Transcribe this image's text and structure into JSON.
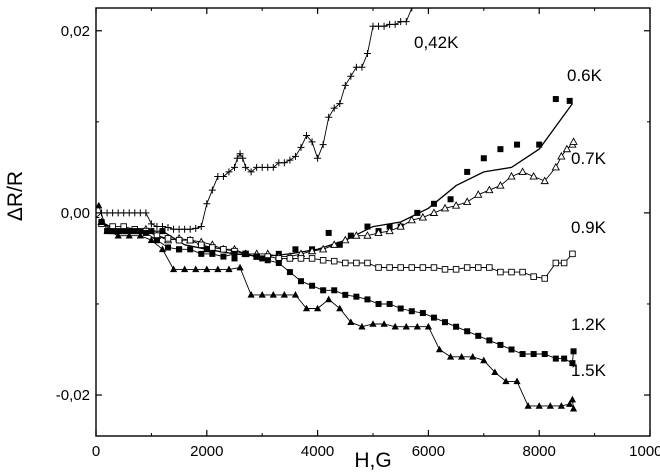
{
  "chart_data": {
    "type": "scatter",
    "xlabel": "H,G",
    "ylabel": "ΔR/R",
    "xlim": [
      0,
      10000
    ],
    "ylim": [
      -0.0245,
      0.0225
    ],
    "xticks": [
      0,
      2000,
      4000,
      6000,
      8000,
      10000
    ],
    "xtick_labels": [
      "0",
      "2000",
      "4000",
      "6000",
      "8000",
      "10000"
    ],
    "yticks": [
      0.02,
      0.0,
      -0.02
    ],
    "ytick_labels": [
      "0,02",
      "0,00",
      "-0,02"
    ],
    "grid": false,
    "series": [
      {
        "name": "0,42K",
        "marker": "plus",
        "line": true,
        "points": [
          [
            0,
            -0.0005
          ],
          [
            100,
            0.0
          ],
          [
            200,
            0.0
          ],
          [
            300,
            0.0
          ],
          [
            400,
            0.0
          ],
          [
            500,
            0.0
          ],
          [
            600,
            0.0
          ],
          [
            700,
            0.0
          ],
          [
            800,
            0.0
          ],
          [
            900,
            0.0
          ],
          [
            1000,
            -0.0012
          ],
          [
            1100,
            -0.0015
          ],
          [
            1200,
            -0.0015
          ],
          [
            1300,
            -0.0016
          ],
          [
            1400,
            -0.0018
          ],
          [
            1500,
            -0.0018
          ],
          [
            1600,
            -0.0018
          ],
          [
            1700,
            -0.0018
          ],
          [
            1800,
            -0.0017
          ],
          [
            1900,
            -0.0015
          ],
          [
            2000,
            0.001
          ],
          [
            2100,
            0.0025
          ],
          [
            2200,
            0.004
          ],
          [
            2300,
            0.004
          ],
          [
            2400,
            0.0045
          ],
          [
            2500,
            0.005
          ],
          [
            2550,
            0.006
          ],
          [
            2600,
            0.0065
          ],
          [
            2650,
            0.006
          ],
          [
            2700,
            0.005
          ],
          [
            2800,
            0.0045
          ],
          [
            2900,
            0.005
          ],
          [
            3000,
            0.005
          ],
          [
            3100,
            0.005
          ],
          [
            3200,
            0.005
          ],
          [
            3300,
            0.0055
          ],
          [
            3400,
            0.0055
          ],
          [
            3500,
            0.0058
          ],
          [
            3600,
            0.0062
          ],
          [
            3700,
            0.0072
          ],
          [
            3800,
            0.0085
          ],
          [
            3900,
            0.0078
          ],
          [
            4000,
            0.006
          ],
          [
            4100,
            0.0075
          ],
          [
            4200,
            0.0105
          ],
          [
            4300,
            0.0115
          ],
          [
            4400,
            0.012
          ],
          [
            4500,
            0.014
          ],
          [
            4600,
            0.015
          ],
          [
            4700,
            0.016
          ],
          [
            4800,
            0.016
          ],
          [
            4900,
            0.0175
          ],
          [
            5000,
            0.0205
          ],
          [
            5100,
            0.0205
          ],
          [
            5200,
            0.0205
          ],
          [
            5300,
            0.0207
          ],
          [
            5400,
            0.0207
          ],
          [
            5500,
            0.021
          ],
          [
            5600,
            0.021
          ],
          [
            5700,
            0.0225
          ]
        ]
      },
      {
        "name": "0.6K",
        "marker": "square-filled",
        "line": false,
        "points": [
          [
            100,
            -0.001
          ],
          [
            200,
            -0.002
          ],
          [
            400,
            -0.002
          ],
          [
            600,
            -0.002
          ],
          [
            800,
            -0.002
          ],
          [
            1000,
            -0.002
          ],
          [
            1200,
            -0.002
          ],
          [
            1500,
            -0.004
          ],
          [
            2000,
            -0.004
          ],
          [
            2500,
            -0.005
          ],
          [
            3000,
            -0.005
          ],
          [
            3300,
            -0.0045
          ],
          [
            3600,
            -0.004
          ],
          [
            3900,
            -0.004
          ],
          [
            4200,
            -0.0022
          ],
          [
            4400,
            -0.0035
          ],
          [
            4600,
            -0.0025
          ],
          [
            4900,
            -0.0015
          ],
          [
            5100,
            -0.002
          ],
          [
            5300,
            -0.0015
          ],
          [
            5500,
            -0.0015
          ],
          [
            5800,
            0.0
          ],
          [
            6100,
            0.001
          ],
          [
            6400,
            0.0015
          ],
          [
            6700,
            0.0045
          ],
          [
            7000,
            0.006
          ],
          [
            7300,
            0.007
          ],
          [
            7600,
            0.0075
          ],
          [
            8000,
            0.0075
          ],
          [
            8300,
            0.0125
          ],
          [
            8550,
            0.0123
          ]
        ]
      },
      {
        "name": "",
        "marker": "none",
        "line": true,
        "points": [
          [
            100,
            -0.001
          ],
          [
            400,
            -0.002
          ],
          [
            800,
            -0.002
          ],
          [
            1200,
            -0.002
          ],
          [
            1600,
            -0.0035
          ],
          [
            2000,
            -0.004
          ],
          [
            2500,
            -0.0045
          ],
          [
            3000,
            -0.0048
          ],
          [
            3500,
            -0.0045
          ],
          [
            4000,
            -0.004
          ],
          [
            4500,
            -0.003
          ],
          [
            5000,
            -0.0015
          ],
          [
            5500,
            -0.001
          ],
          [
            6000,
            0.0005
          ],
          [
            6500,
            0.003
          ],
          [
            7000,
            0.0045
          ],
          [
            7500,
            0.005
          ],
          [
            8000,
            0.007
          ],
          [
            8300,
            0.0095
          ],
          [
            8600,
            0.012
          ]
        ]
      },
      {
        "name": "0.7K",
        "marker": "triangle-open",
        "line": true,
        "points": [
          [
            100,
            -0.001
          ],
          [
            300,
            -0.002
          ],
          [
            500,
            -0.002
          ],
          [
            700,
            -0.002
          ],
          [
            900,
            -0.0018
          ],
          [
            1100,
            -0.0025
          ],
          [
            1300,
            -0.003
          ],
          [
            1500,
            -0.0028
          ],
          [
            1700,
            -0.003
          ],
          [
            1900,
            -0.0032
          ],
          [
            2100,
            -0.0035
          ],
          [
            2300,
            -0.004
          ],
          [
            2500,
            -0.004
          ],
          [
            2700,
            -0.0045
          ],
          [
            2900,
            -0.0045
          ],
          [
            3100,
            -0.0045
          ],
          [
            3300,
            -0.0048
          ],
          [
            3500,
            -0.0048
          ],
          [
            3700,
            -0.0045
          ],
          [
            3900,
            -0.0042
          ],
          [
            4100,
            -0.004
          ],
          [
            4300,
            -0.0035
          ],
          [
            4500,
            -0.003
          ],
          [
            4700,
            -0.0025
          ],
          [
            4900,
            -0.0025
          ],
          [
            5100,
            -0.0022
          ],
          [
            5300,
            -0.002
          ],
          [
            5500,
            -0.0015
          ],
          [
            5700,
            -0.0008
          ],
          [
            5900,
            -0.0005
          ],
          [
            6100,
            0.0
          ],
          [
            6300,
            0.0005
          ],
          [
            6500,
            0.0008
          ],
          [
            6700,
            0.0012
          ],
          [
            6900,
            0.002
          ],
          [
            7100,
            0.0025
          ],
          [
            7300,
            0.003
          ],
          [
            7500,
            0.004
          ],
          [
            7700,
            0.0045
          ],
          [
            7900,
            0.004
          ],
          [
            8100,
            0.0035
          ],
          [
            8300,
            0.005
          ],
          [
            8400,
            0.0062
          ],
          [
            8500,
            0.007
          ],
          [
            8600,
            0.0075
          ],
          [
            8620,
            0.0078
          ]
        ]
      },
      {
        "name": "0.9K",
        "marker": "square-open",
        "line": true,
        "points": [
          [
            100,
            -0.0012
          ],
          [
            300,
            -0.0015
          ],
          [
            500,
            -0.0015
          ],
          [
            700,
            -0.0018
          ],
          [
            900,
            -0.002
          ],
          [
            1100,
            -0.0025
          ],
          [
            1300,
            -0.0028
          ],
          [
            1500,
            -0.003
          ],
          [
            1700,
            -0.003
          ],
          [
            1900,
            -0.0035
          ],
          [
            2100,
            -0.0038
          ],
          [
            2300,
            -0.004
          ],
          [
            2500,
            -0.0042
          ],
          [
            2700,
            -0.0045
          ],
          [
            2900,
            -0.0048
          ],
          [
            3100,
            -0.0048
          ],
          [
            3300,
            -0.005
          ],
          [
            3500,
            -0.005
          ],
          [
            3700,
            -0.005
          ],
          [
            3900,
            -0.005
          ],
          [
            4100,
            -0.0052
          ],
          [
            4300,
            -0.0053
          ],
          [
            4500,
            -0.0055
          ],
          [
            4700,
            -0.0055
          ],
          [
            4900,
            -0.0055
          ],
          [
            5100,
            -0.006
          ],
          [
            5300,
            -0.006
          ],
          [
            5500,
            -0.006
          ],
          [
            5700,
            -0.006
          ],
          [
            5900,
            -0.006
          ],
          [
            6100,
            -0.006
          ],
          [
            6300,
            -0.0062
          ],
          [
            6500,
            -0.0062
          ],
          [
            6700,
            -0.006
          ],
          [
            6900,
            -0.006
          ],
          [
            7100,
            -0.006
          ],
          [
            7300,
            -0.0065
          ],
          [
            7500,
            -0.0065
          ],
          [
            7700,
            -0.0065
          ],
          [
            7900,
            -0.007
          ],
          [
            8100,
            -0.0072
          ],
          [
            8300,
            -0.0055
          ],
          [
            8450,
            -0.0055
          ],
          [
            8600,
            -0.0045
          ]
        ]
      },
      {
        "name": "1.2K",
        "marker": "square-filled",
        "line": true,
        "points": [
          [
            100,
            -0.001
          ],
          [
            300,
            -0.002
          ],
          [
            500,
            -0.002
          ],
          [
            700,
            -0.002
          ],
          [
            900,
            -0.0022
          ],
          [
            1100,
            -0.003
          ],
          [
            1300,
            -0.0038
          ],
          [
            1500,
            -0.004
          ],
          [
            1700,
            -0.004
          ],
          [
            1900,
            -0.0045
          ],
          [
            2100,
            -0.0045
          ],
          [
            2300,
            -0.0048
          ],
          [
            2500,
            -0.0045
          ],
          [
            2700,
            -0.0045
          ],
          [
            2900,
            -0.0048
          ],
          [
            3100,
            -0.0052
          ],
          [
            3300,
            -0.0055
          ],
          [
            3500,
            -0.0065
          ],
          [
            3700,
            -0.0075
          ],
          [
            3900,
            -0.008
          ],
          [
            4100,
            -0.0085
          ],
          [
            4300,
            -0.0085
          ],
          [
            4500,
            -0.009
          ],
          [
            4700,
            -0.0092
          ],
          [
            4900,
            -0.0095
          ],
          [
            5100,
            -0.01
          ],
          [
            5300,
            -0.01
          ],
          [
            5500,
            -0.0105
          ],
          [
            5700,
            -0.0108
          ],
          [
            5900,
            -0.011
          ],
          [
            6100,
            -0.0115
          ],
          [
            6300,
            -0.012
          ],
          [
            6500,
            -0.0125
          ],
          [
            6700,
            -0.013
          ],
          [
            6900,
            -0.0135
          ],
          [
            7100,
            -0.014
          ],
          [
            7300,
            -0.0145
          ],
          [
            7500,
            -0.015
          ],
          [
            7700,
            -0.0155
          ],
          [
            7900,
            -0.0155
          ],
          [
            8100,
            -0.0155
          ],
          [
            8300,
            -0.016
          ],
          [
            8450,
            -0.016
          ],
          [
            8600,
            -0.0165
          ],
          [
            8620,
            -0.0152
          ]
        ]
      },
      {
        "name": "1.5K",
        "marker": "triangle-filled",
        "line": true,
        "points": [
          [
            50,
            0.0008
          ],
          [
            200,
            -0.002
          ],
          [
            400,
            -0.0025
          ],
          [
            600,
            -0.0025
          ],
          [
            800,
            -0.0025
          ],
          [
            1000,
            -0.003
          ],
          [
            1200,
            -0.004
          ],
          [
            1400,
            -0.0062
          ],
          [
            1600,
            -0.0062
          ],
          [
            1800,
            -0.0062
          ],
          [
            2000,
            -0.0062
          ],
          [
            2200,
            -0.0062
          ],
          [
            2400,
            -0.0062
          ],
          [
            2600,
            -0.006
          ],
          [
            2800,
            -0.009
          ],
          [
            3000,
            -0.009
          ],
          [
            3200,
            -0.009
          ],
          [
            3400,
            -0.009
          ],
          [
            3600,
            -0.009
          ],
          [
            3800,
            -0.0105
          ],
          [
            4000,
            -0.0105
          ],
          [
            4200,
            -0.0095
          ],
          [
            4400,
            -0.0105
          ],
          [
            4600,
            -0.012
          ],
          [
            4800,
            -0.0125
          ],
          [
            5000,
            -0.0122
          ],
          [
            5200,
            -0.0122
          ],
          [
            5400,
            -0.0125
          ],
          [
            5600,
            -0.0125
          ],
          [
            5800,
            -0.0125
          ],
          [
            6000,
            -0.0125
          ],
          [
            6200,
            -0.015
          ],
          [
            6400,
            -0.0158
          ],
          [
            6600,
            -0.0158
          ],
          [
            6800,
            -0.0158
          ],
          [
            7000,
            -0.0162
          ],
          [
            7200,
            -0.0175
          ],
          [
            7400,
            -0.0185
          ],
          [
            7600,
            -0.0185
          ],
          [
            7800,
            -0.0212
          ],
          [
            8000,
            -0.0212
          ],
          [
            8200,
            -0.0212
          ],
          [
            8400,
            -0.0212
          ],
          [
            8550,
            -0.021
          ],
          [
            8600,
            -0.0205
          ],
          [
            8620,
            -0.0215
          ]
        ]
      }
    ]
  }
}
